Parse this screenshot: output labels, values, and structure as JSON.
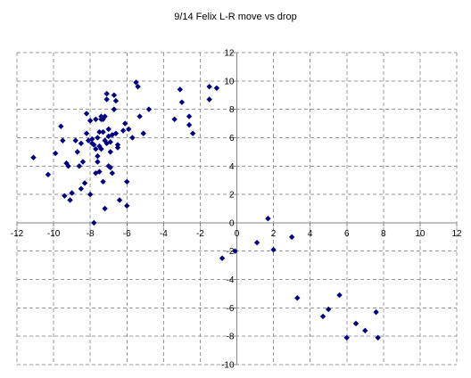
{
  "chart_data": {
    "type": "scatter",
    "title": "9/14 Felix L-R move vs drop",
    "xlabel": "",
    "ylabel": "",
    "xlim": [
      -12,
      12
    ],
    "ylim": [
      -10,
      12
    ],
    "x_ticks": [
      -12,
      -10,
      -8,
      -6,
      -4,
      -2,
      0,
      2,
      4,
      6,
      8,
      10,
      12
    ],
    "y_ticks": [
      -10,
      -8,
      -6,
      -4,
      -2,
      0,
      2,
      4,
      6,
      8,
      10,
      12
    ],
    "grid": true,
    "legend": "none",
    "marker": "diamond",
    "marker_color": "#000080",
    "series": [
      {
        "x": [
          -11.1,
          -10.3,
          -9.9,
          -9.6,
          -9.5,
          -9.4,
          -9.3,
          -9.2,
          -9.1,
          -9.0,
          -8.8,
          -8.7,
          -8.6,
          -8.5,
          -8.5,
          -8.4,
          -8.3,
          -8.2,
          -8.2,
          -8.1,
          -8.0,
          -8.0,
          -7.9,
          -7.9,
          -7.8,
          -7.8,
          -7.7,
          -7.7,
          -7.7,
          -7.6,
          -7.6,
          -7.6,
          -7.5,
          -7.5,
          -7.5,
          -7.4,
          -7.4,
          -7.4,
          -7.3,
          -7.3,
          -7.3,
          -7.2,
          -7.2,
          -7.2,
          -7.1,
          -7.1,
          -7.1,
          -7.0,
          -7.0,
          -7.0,
          -6.9,
          -6.9,
          -6.9,
          -6.8,
          -6.8,
          -6.7,
          -6.7,
          -6.6,
          -6.6,
          -6.5,
          -6.5,
          -6.4,
          -6.2,
          -6.1,
          -6.0,
          -6.0,
          -5.9,
          -5.7,
          -5.5,
          -5.4,
          -5.3,
          -5.1,
          -4.8,
          -3.4,
          -3.1,
          -3.0,
          -2.6,
          -2.6,
          -2.4,
          -1.5,
          -1.5,
          -1.1,
          -0.8,
          -0.1,
          1.1,
          1.7,
          2.0,
          3.0,
          3.3,
          4.7,
          5.0,
          5.6,
          6.0,
          6.5,
          7.0,
          7.6,
          7.7
        ],
        "y": [
          4.6,
          3.4,
          4.9,
          6.8,
          5.8,
          1.9,
          4.2,
          4.0,
          1.6,
          2.1,
          5.8,
          5.0,
          4.0,
          5.6,
          2.4,
          4.3,
          2.8,
          7.7,
          6.3,
          5.8,
          7.2,
          2.0,
          5.6,
          5.9,
          0.0,
          5.5,
          7.3,
          5.2,
          3.5,
          6.0,
          4.7,
          4.3,
          6.4,
          5.4,
          3.6,
          7.5,
          7.3,
          5.2,
          6.4,
          7.3,
          2.9,
          7.5,
          5.8,
          1.0,
          8.7,
          9.1,
          5.6,
          6.6,
          6.1,
          4.0,
          5.7,
          3.9,
          5.0,
          6.2,
          3.5,
          8.0,
          9.0,
          6.3,
          8.6,
          5.5,
          5.3,
          1.6,
          6.5,
          7.0,
          2.9,
          1.2,
          6.6,
          6.0,
          9.9,
          9.6,
          7.5,
          6.3,
          8.0,
          7.3,
          9.4,
          8.5,
          7.5,
          6.9,
          6.3,
          9.6,
          8.7,
          9.5,
          -2.5,
          -2.0,
          -1.4,
          0.3,
          -1.9,
          -1.0,
          -5.3,
          -6.6,
          -6.1,
          -5.1,
          -8.1,
          -7.1,
          -7.6,
          -6.3,
          -8.1
        ]
      }
    ]
  }
}
